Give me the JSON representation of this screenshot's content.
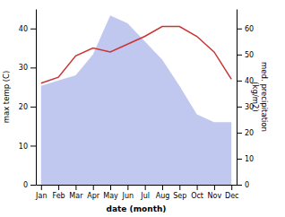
{
  "chart_data": {
    "type": "line",
    "categories": [
      "Jan",
      "Feb",
      "Mar",
      "Apr",
      "May",
      "Jun",
      "Jul",
      "Aug",
      "Sep",
      "Oct",
      "Nov",
      "Dec"
    ],
    "x_label": "date (month)",
    "y_label": "max temp (C)",
    "y2_label": "med. precipitation\n(kg/m2)",
    "ylim": [
      0,
      45
    ],
    "yticks": [
      0,
      10,
      20,
      30,
      40
    ],
    "y2lim": [
      0,
      67.5
    ],
    "y2ticks": [
      0,
      10,
      20,
      30,
      40,
      50,
      60
    ],
    "grid": false,
    "series": [
      {
        "type": "line",
        "color": "#cc3333",
        "values": [
          26,
          27.5,
          33,
          35,
          34,
          36,
          38,
          40.5,
          40.5,
          38,
          34,
          27
        ]
      },
      {
        "type": "area",
        "axis": "y2",
        "color": "#c0c8f0",
        "values": [
          38,
          40,
          42,
          50,
          65,
          62,
          55,
          48,
          38,
          27,
          24,
          24
        ]
      }
    ]
  }
}
